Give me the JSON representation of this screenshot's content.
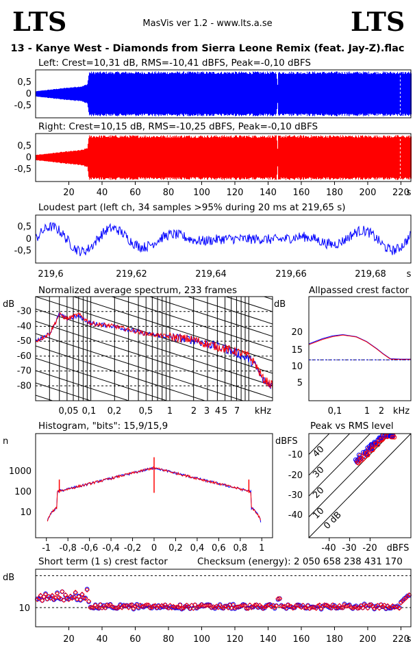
{
  "header": {
    "logo_left": "LTS",
    "logo_right": "LTS",
    "version": "MasVis ver 1.2 - www.lts.a.se",
    "file_title": "13 - Kanye West - Diamonds from Sierra Leone Remix (feat. Jay-Z).flac"
  },
  "colors": {
    "left": "#0000ff",
    "right": "#ff0000"
  },
  "chart_data": [
    {
      "id": "left_waveform",
      "type": "area",
      "title": "Left: Crest=10,31 dB, RMS=-10,41 dBFS, Peak=-0,10 dBFS",
      "ylim": [
        -1,
        1
      ],
      "yticks": [
        "0,5",
        "0",
        "-0,5"
      ],
      "xlim": [
        0,
        226
      ],
      "color": "#0000ff",
      "envelope": [
        [
          0,
          0.12
        ],
        [
          15,
          0.25
        ],
        [
          28,
          0.35
        ],
        [
          31,
          0.45
        ],
        [
          32,
          0.99
        ],
        [
          145,
          0.99
        ],
        [
          145.5,
          0.3
        ],
        [
          146,
          0.99
        ],
        [
          220,
          0.99
        ],
        [
          226,
          0.99
        ]
      ]
    },
    {
      "id": "right_waveform",
      "type": "area",
      "title": "Right: Crest=10,15 dB, RMS=-10,25 dBFS, Peak=-0,10 dBFS",
      "ylim": [
        -1,
        1
      ],
      "yticks": [
        "0,5",
        "0",
        "-0,5"
      ],
      "xlim": [
        0,
        226
      ],
      "xticks": [
        "20",
        "40",
        "60",
        "80",
        "100",
        "120",
        "140",
        "160",
        "180",
        "200",
        "220"
      ],
      "xunit": "s",
      "color": "#ff0000",
      "envelope": [
        [
          0,
          0.12
        ],
        [
          15,
          0.25
        ],
        [
          28,
          0.35
        ],
        [
          31,
          0.45
        ],
        [
          32,
          0.99
        ],
        [
          145,
          0.99
        ],
        [
          145.5,
          0.3
        ],
        [
          146,
          0.99
        ],
        [
          220,
          0.99
        ],
        [
          226,
          0.99
        ]
      ]
    },
    {
      "id": "loudest_part",
      "type": "line",
      "title": "Loudest part (left  ch, 34 samples >95% during 20 ms at 219,65 s)",
      "ylim": [
        -1,
        1
      ],
      "yticks": [
        "0,5",
        "0",
        "-0,5"
      ],
      "xlim": [
        219.59,
        219.69
      ],
      "xticks": [
        "219,6",
        "219,62",
        "219,64",
        "219,66",
        "219,68"
      ],
      "xunit": "s",
      "color": "#0000ff"
    },
    {
      "id": "spectrum",
      "type": "line",
      "title": "Normalized average spectrum, 233 frames",
      "ylabel": "dB",
      "yticks": [
        "-30",
        "-40",
        "-50",
        "-60",
        "-70",
        "-80"
      ],
      "xticks": [
        "0,05",
        "0,1",
        "0,2",
        "0,5",
        "1",
        "2",
        "3",
        "4",
        "5",
        "7"
      ],
      "xunit": "kHz",
      "series": [
        {
          "color": "#0000ff",
          "x": [
            0.02,
            0.03,
            0.04,
            0.05,
            0.07,
            0.1,
            0.2,
            0.5,
            1,
            2,
            3,
            5,
            7,
            10,
            12,
            15,
            20
          ],
          "y": [
            -50,
            -45,
            -32,
            -35,
            -33,
            -38,
            -40,
            -45,
            -47,
            -49,
            -52,
            -55,
            -58,
            -62,
            -66,
            -76,
            -80
          ]
        },
        {
          "color": "#ff0000",
          "x": [
            0.02,
            0.03,
            0.04,
            0.05,
            0.07,
            0.1,
            0.2,
            0.5,
            1,
            2,
            3,
            5,
            7,
            10,
            12,
            15,
            20
          ],
          "y": [
            -50,
            -45,
            -32,
            -35,
            -32,
            -38,
            -40,
            -45,
            -47,
            -49,
            -52,
            -55,
            -57,
            -60,
            -65,
            -75,
            -80
          ]
        }
      ]
    },
    {
      "id": "allpassed_crest",
      "type": "line",
      "title": "Allpassed crest factor",
      "ylabel": "dB",
      "yticks": [
        "20",
        "15",
        "10",
        "5"
      ],
      "xticks": [
        "0,1",
        "1",
        "2",
        "kHz"
      ],
      "reference": 10.2,
      "series": [
        {
          "color": "#0000ff",
          "x": [
            0.02,
            0.05,
            0.1,
            0.2,
            0.5,
            1,
            2,
            3,
            5,
            10,
            20
          ],
          "y": [
            14.2,
            15.5,
            16.2,
            16.5,
            16.0,
            14.8,
            13.0,
            11.8,
            10.5,
            10.4,
            10.4
          ]
        },
        {
          "color": "#ff0000",
          "x": [
            0.02,
            0.05,
            0.1,
            0.2,
            0.5,
            1,
            2,
            3,
            5,
            10,
            20
          ],
          "y": [
            14.0,
            15.3,
            16.0,
            16.4,
            15.9,
            14.7,
            12.9,
            11.7,
            10.4,
            10.3,
            10.3
          ]
        }
      ]
    },
    {
      "id": "histogram",
      "type": "line",
      "title": "Histogram, \"bits\": 15,9/15,9",
      "ylabel": "n",
      "yticks": [
        "1000",
        "100",
        "10"
      ],
      "xticks": [
        "-1",
        "-0,8",
        "-0,6",
        "-0,4",
        "-0,2",
        "0",
        "0,2",
        "0,4",
        "0,6",
        "0,8",
        "1"
      ],
      "xlim": [
        -1.1,
        1.1
      ]
    },
    {
      "id": "peak_vs_rms",
      "type": "scatter",
      "title": "Peak vs RMS level",
      "ylabel": "dBFS",
      "xlabel": "dBFS",
      "yticks": [
        "-10",
        "-20",
        "-30",
        "-40"
      ],
      "xticks": [
        "-40",
        "-30",
        "-20"
      ],
      "diagonal_labels": [
        "40",
        "30",
        "20",
        "10",
        "0 dB"
      ],
      "points_rms": [
        -26,
        -25,
        -24,
        -23,
        -22,
        -21,
        -20,
        -19,
        -18,
        -17,
        -16,
        -15,
        -14,
        -13,
        -12,
        -11,
        -10
      ],
      "points_peak": [
        -13,
        -12,
        -11,
        -10,
        -9,
        -8,
        -7,
        -6,
        -5,
        -4,
        -3,
        -2,
        -1,
        -0.5,
        -0.2,
        -0.1,
        -0.1
      ]
    },
    {
      "id": "short_term_crest",
      "type": "scatter",
      "title": "Short term (1 s) crest factor",
      "checksum": "Checksum (energy):  2 050 658 238 431 170",
      "ylabel": "dB",
      "yticks": [
        "10"
      ],
      "xticks": [
        "20",
        "40",
        "60",
        "80",
        "100",
        "120",
        "140",
        "160",
        "180",
        "200",
        "220"
      ],
      "xunit": "s",
      "xlim": [
        0,
        226
      ],
      "left_values": [
        12.5,
        13.0,
        13.8,
        12.2,
        13.4,
        14.1,
        12.7,
        13.5,
        12.9,
        13.8,
        12.6,
        13.1,
        14.4,
        13.2,
        12.8,
        15.0,
        12.3,
        14.0,
        13.0,
        12.5,
        13.6,
        12.9,
        13.3,
        14.8,
        12.7,
        13.4,
        12.5,
        14.2,
        13.1,
        12.8,
        15.5,
        12.0
      ],
      "body_mean": 10.3
    }
  ]
}
